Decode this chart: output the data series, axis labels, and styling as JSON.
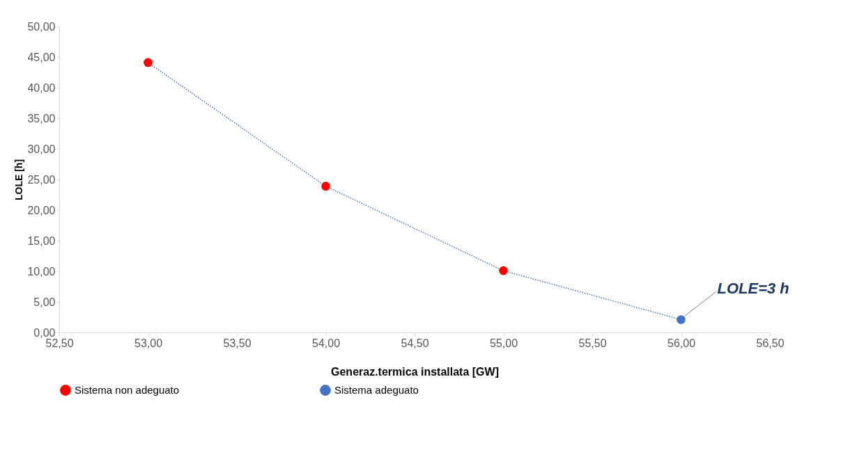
{
  "chart_data": {
    "type": "scatter",
    "xlabel": "Generaz.termica installata [GW]",
    "ylabel": "LOLE [h]",
    "series": [
      {
        "name": "Sistema non adeguato",
        "color": "#ff0000",
        "marker": "circle",
        "x": [
          53,
          54,
          55
        ],
        "values": [
          44.1,
          23.9,
          10.1
        ]
      },
      {
        "name": "Sistema adeguato",
        "color": "#4472c4",
        "marker": "circle",
        "x": [
          56
        ],
        "values": [
          2.1
        ]
      },
      {
        "type": "line",
        "color": "#4472c4",
        "line_style": "dotted",
        "x": [
          53,
          54,
          55,
          56
        ],
        "values": [
          44.1,
          23.9,
          10.1,
          2.1
        ]
      }
    ],
    "annotations": [
      {
        "text": "LOLE=3 h",
        "x": 56,
        "y": 2.1
      }
    ],
    "xlim": [
      52.5,
      56.5
    ],
    "xticks": [
      {
        "value": 52.5,
        "label": "52,50"
      },
      {
        "value": 53,
        "label": "53,00"
      },
      {
        "value": 53.5,
        "label": "53,50"
      },
      {
        "value": 54,
        "label": "54,00"
      },
      {
        "value": 54.5,
        "label": "54,50"
      },
      {
        "value": 55,
        "label": "55,00"
      },
      {
        "value": 55.5,
        "label": "55,50"
      },
      {
        "value": 56,
        "label": "56,00"
      },
      {
        "value": 56.5,
        "label": "56,50"
      }
    ],
    "ylim": [
      0,
      50
    ],
    "yticks": [
      {
        "value": 0,
        "label": "0,00"
      },
      {
        "value": 5,
        "label": "5,00"
      },
      {
        "value": 10,
        "label": "10,00"
      },
      {
        "value": 15,
        "label": "15,00"
      },
      {
        "value": 20,
        "label": "20,00"
      },
      {
        "value": 25,
        "label": "25,00"
      },
      {
        "value": 30,
        "label": "30,00"
      },
      {
        "value": 35,
        "label": "35,00"
      },
      {
        "value": 40,
        "label": "40,00"
      },
      {
        "value": 45,
        "label": "45,00"
      },
      {
        "value": 50,
        "label": "50,00"
      }
    ],
    "grid": false,
    "legend": "bottom"
  }
}
